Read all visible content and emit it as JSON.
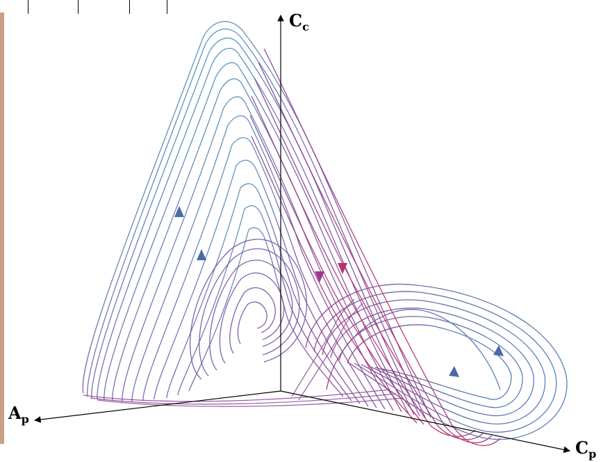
{
  "axes": {
    "vertical": {
      "label": "C",
      "subscript": "c"
    },
    "left": {
      "label": "A",
      "subscript": "p"
    },
    "right": {
      "label": "C",
      "subscript": "p"
    }
  },
  "colors": {
    "teal": "#3fa8c0",
    "purple": "#7a5aa8",
    "magenta": "#b8336a",
    "blue": "#4a6aa8",
    "axis": "#000000",
    "left_bar": "#c9a184"
  }
}
